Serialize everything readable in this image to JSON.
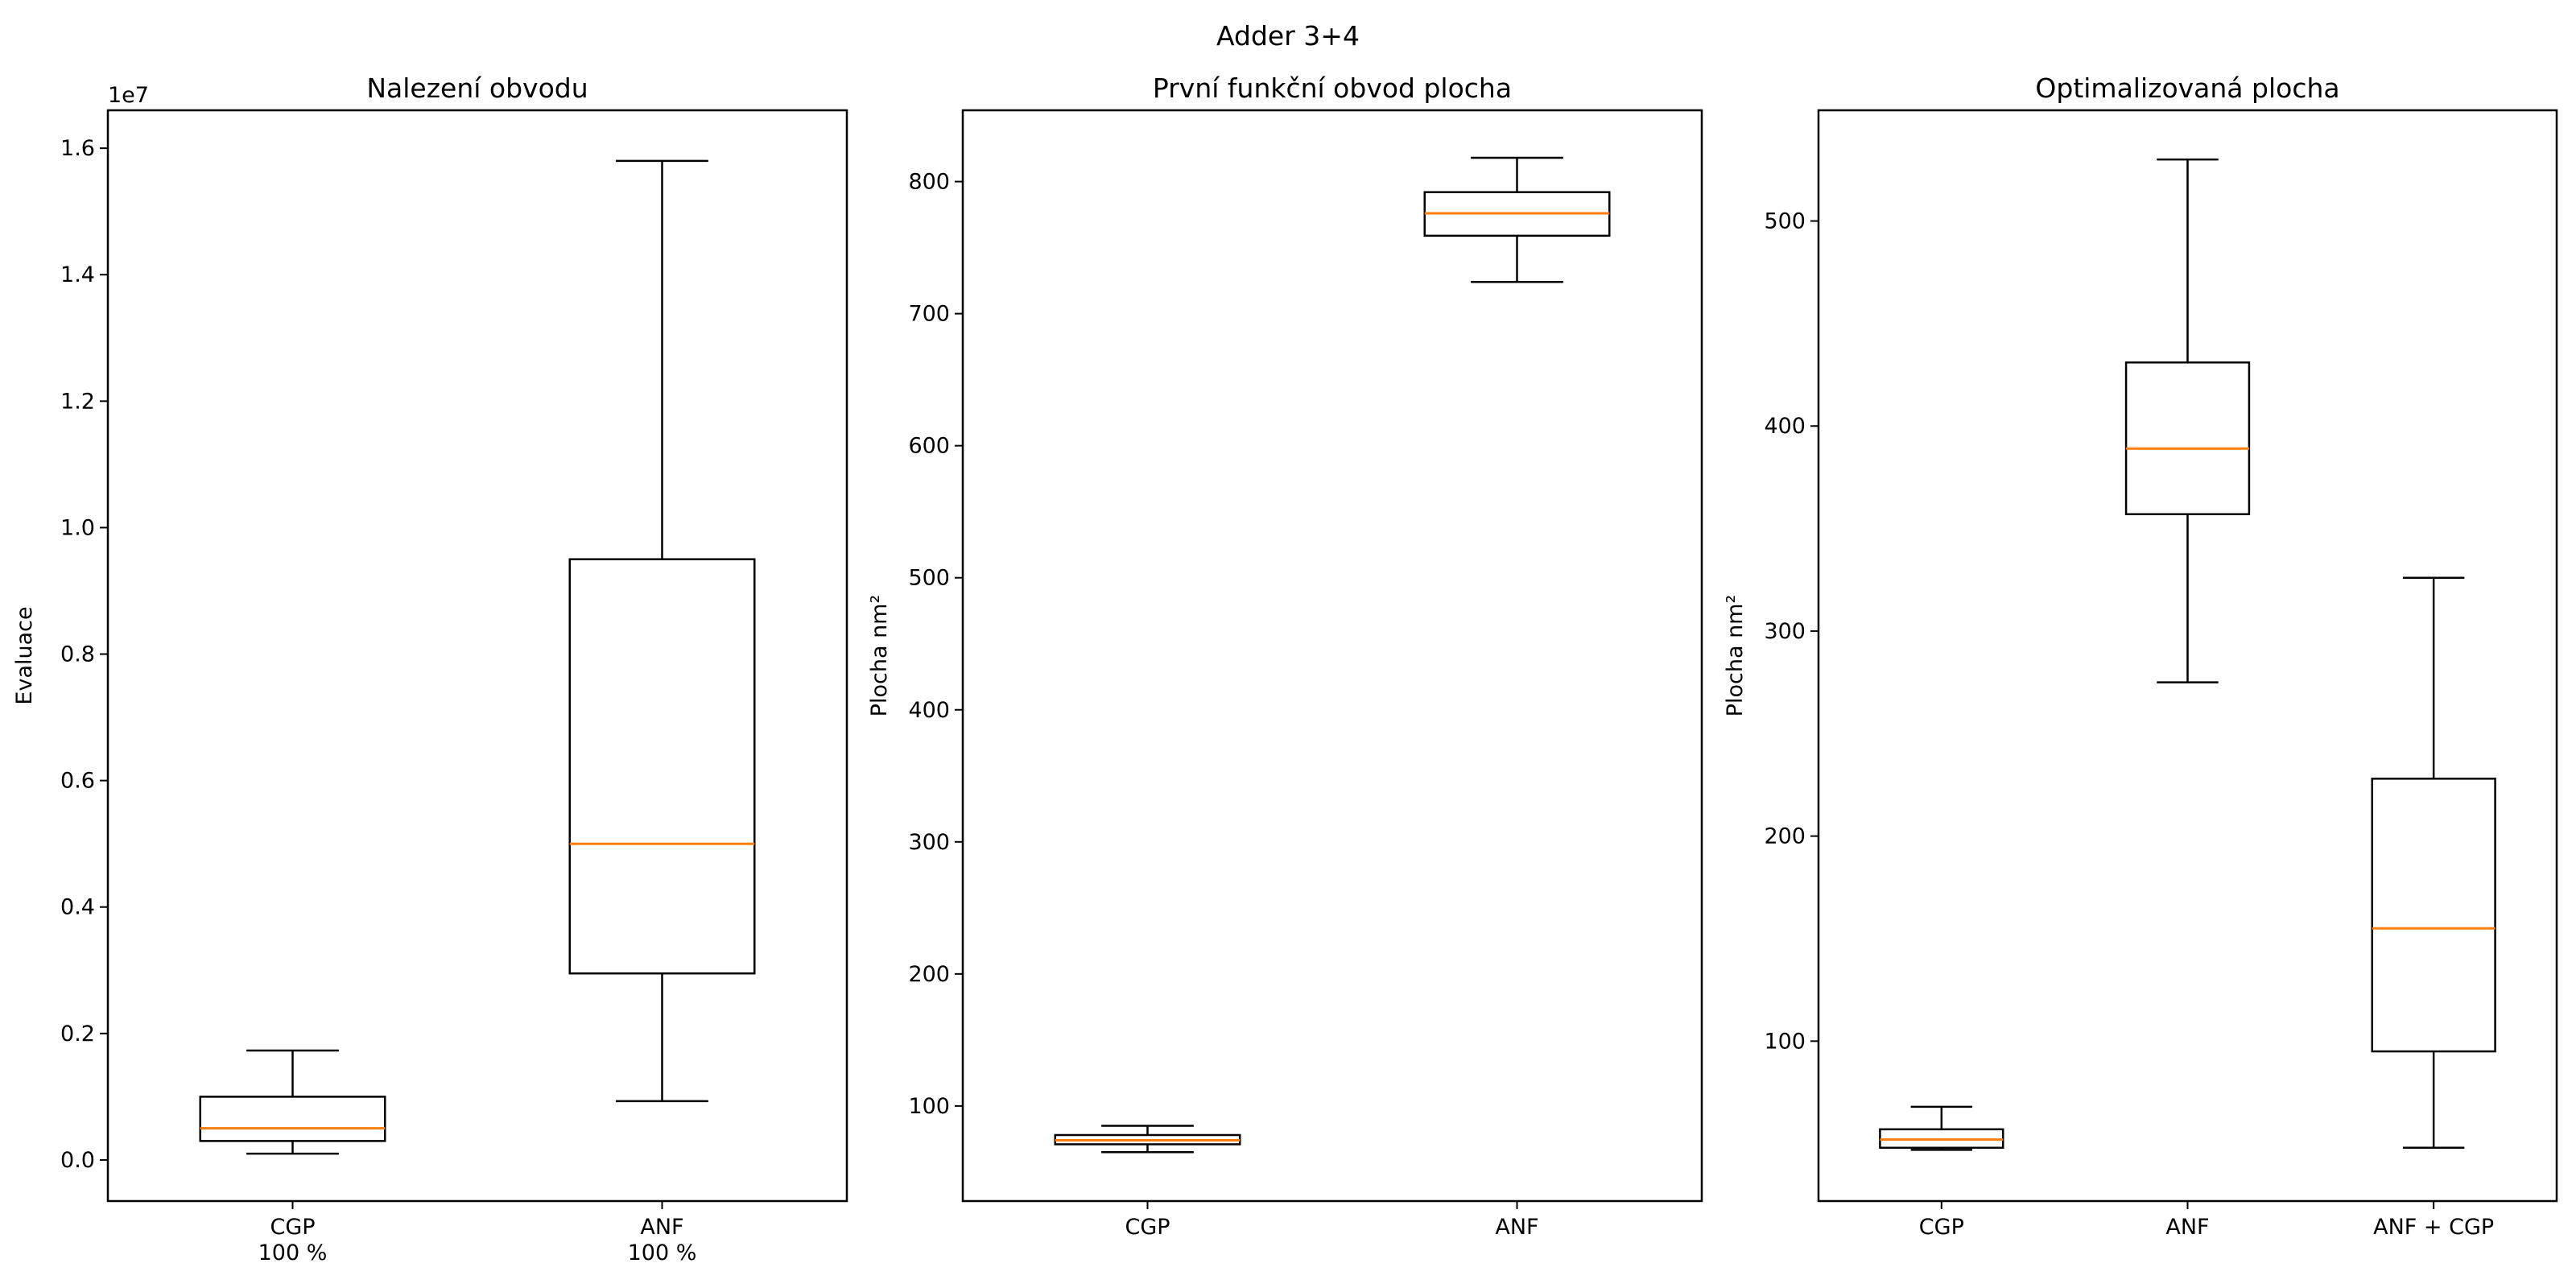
{
  "figure_title": "Adder 3+4",
  "colors": {
    "box": "#000000",
    "median": "#ff7f0e",
    "background": "#ffffff"
  },
  "chart_data": [
    {
      "type": "box",
      "title": "Nalezení obvodu",
      "xlabel": "",
      "ylabel": "Evaluace",
      "y_offset_label": "1e7",
      "categories": [
        "CGP\n100 %",
        "ANF\n100 %"
      ],
      "ylim": [
        -0.065,
        1.66
      ],
      "yticks": [
        0.0,
        0.2,
        0.4,
        0.6,
        0.8,
        1.0,
        1.2,
        1.4,
        1.6
      ],
      "ytick_labels": [
        "0.0",
        "0.2",
        "0.4",
        "0.6",
        "0.8",
        "1.0",
        "1.2",
        "1.4",
        "1.6"
      ],
      "boxes": [
        {
          "whislo": 0.01,
          "q1": 0.03,
          "med": 0.05,
          "q3": 0.1,
          "whishi": 0.173
        },
        {
          "whislo": 0.093,
          "q1": 0.295,
          "med": 0.5,
          "q3": 0.95,
          "whishi": 1.58
        }
      ]
    },
    {
      "type": "box",
      "title": "První funkční obvod plocha",
      "xlabel": "",
      "ylabel": "Plocha nm²",
      "categories": [
        "CGP",
        "ANF"
      ],
      "ylim": [
        28,
        854
      ],
      "yticks": [
        100,
        200,
        300,
        400,
        500,
        600,
        700,
        800
      ],
      "ytick_labels": [
        "100",
        "200",
        "300",
        "400",
        "500",
        "600",
        "700",
        "800"
      ],
      "boxes": [
        {
          "whislo": 65,
          "q1": 71,
          "med": 74,
          "q3": 78,
          "whishi": 85
        },
        {
          "whislo": 724,
          "q1": 759,
          "med": 776,
          "q3": 792,
          "whishi": 818
        }
      ]
    },
    {
      "type": "box",
      "title": "Optimalizovaná plocha",
      "xlabel": "",
      "ylabel": "Plocha nm²",
      "categories": [
        "CGP",
        "ANF",
        "ANF + CGP"
      ],
      "ylim": [
        22,
        554
      ],
      "yticks": [
        100,
        200,
        300,
        400,
        500
      ],
      "ytick_labels": [
        "100",
        "200",
        "300",
        "400",
        "500"
      ],
      "boxes": [
        {
          "whislo": 47,
          "q1": 48,
          "med": 52,
          "q3": 57,
          "whishi": 68
        },
        {
          "whislo": 275,
          "q1": 357,
          "med": 389,
          "q3": 431,
          "whishi": 530
        },
        {
          "whislo": 48,
          "q1": 95,
          "med": 155,
          "q3": 228,
          "whishi": 326
        }
      ]
    }
  ]
}
